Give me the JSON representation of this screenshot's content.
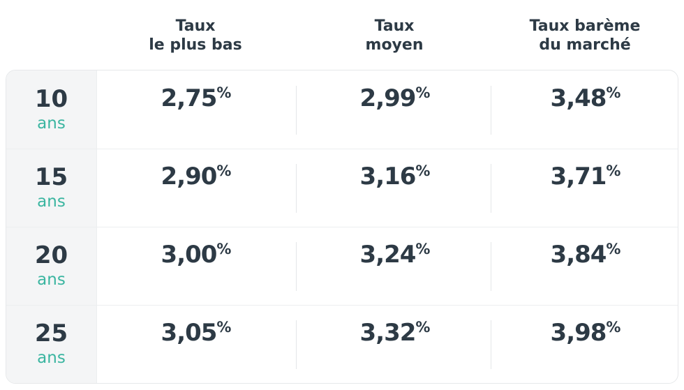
{
  "table": {
    "headers": [
      {
        "lines": [
          "Taux",
          "le plus bas"
        ]
      },
      {
        "lines": [
          "Taux",
          "moyen"
        ]
      },
      {
        "lines": [
          "Taux barème",
          "du marché"
        ]
      }
    ],
    "rows": [
      {
        "duration": "10",
        "unit": "ans",
        "cells": [
          {
            "value": "2,75",
            "unit": "%"
          },
          {
            "value": "2,99",
            "unit": "%"
          },
          {
            "value": "3,48",
            "unit": "%"
          }
        ]
      },
      {
        "duration": "15",
        "unit": "ans",
        "cells": [
          {
            "value": "2,90",
            "unit": "%"
          },
          {
            "value": "3,16",
            "unit": "%"
          },
          {
            "value": "3,71",
            "unit": "%"
          }
        ]
      },
      {
        "duration": "20",
        "unit": "ans",
        "cells": [
          {
            "value": "3,00",
            "unit": "%"
          },
          {
            "value": "3,24",
            "unit": "%"
          },
          {
            "value": "3,84",
            "unit": "%"
          }
        ]
      },
      {
        "duration": "25",
        "unit": "ans",
        "cells": [
          {
            "value": "3,05",
            "unit": "%"
          },
          {
            "value": "3,32",
            "unit": "%"
          },
          {
            "value": "3,98",
            "unit": "%"
          }
        ]
      }
    ]
  }
}
